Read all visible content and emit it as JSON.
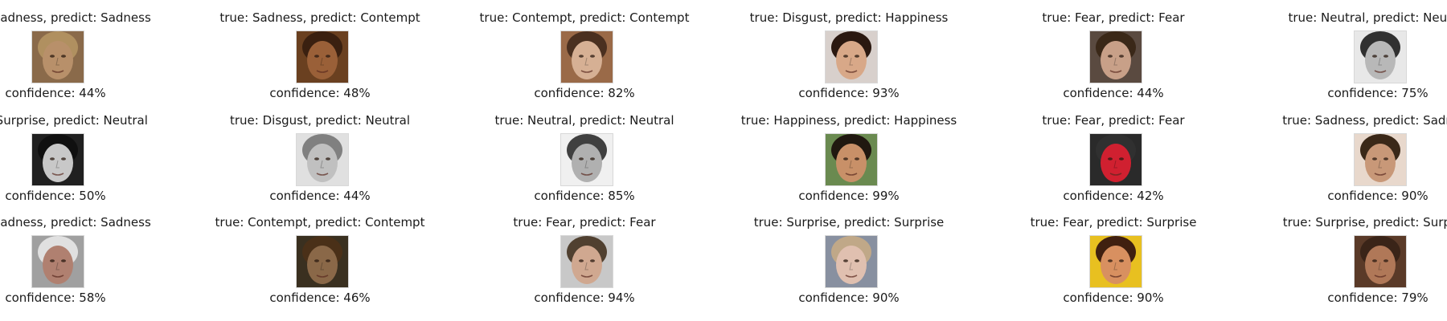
{
  "panels": [
    {
      "row": 0,
      "col": 0,
      "true_label": "Sadness",
      "predicted_label": "Sadness",
      "confidence": 44,
      "title": "true: Sadness, predict: Sadness",
      "caption": "confidence: 44%",
      "thumbnail_icon": "face-thumbnail-icon",
      "tone": {
        "bg": "#8a6a4a",
        "skin": "#b8906a",
        "hair": "#b09060"
      }
    },
    {
      "row": 0,
      "col": 1,
      "true_label": "Sadness",
      "predicted_label": "Contempt",
      "confidence": 48,
      "title": "true: Sadness, predict: Contempt",
      "caption": "confidence: 48%",
      "thumbnail_icon": "face-thumbnail-icon",
      "tone": {
        "bg": "#6a4020",
        "skin": "#9a6038",
        "hair": "#3a2010"
      }
    },
    {
      "row": 0,
      "col": 2,
      "true_label": "Contempt",
      "predicted_label": "Contempt",
      "confidence": 82,
      "title": "true: Contempt, predict: Contempt",
      "caption": "confidence: 82%",
      "thumbnail_icon": "face-thumbnail-icon",
      "tone": {
        "bg": "#9a6a48",
        "skin": "#d6b094",
        "hair": "#4a3020"
      }
    },
    {
      "row": 0,
      "col": 3,
      "true_label": "Disgust",
      "predicted_label": "Happiness",
      "confidence": 93,
      "title": "true: Disgust, predict: Happiness",
      "caption": "confidence: 93%",
      "thumbnail_icon": "face-thumbnail-icon",
      "tone": {
        "bg": "#d8d0cc",
        "skin": "#d8a888",
        "hair": "#2a1810"
      }
    },
    {
      "row": 0,
      "col": 4,
      "true_label": "Fear",
      "predicted_label": "Fear",
      "confidence": 44,
      "title": "true: Fear, predict: Fear",
      "caption": "confidence: 44%",
      "thumbnail_icon": "face-thumbnail-icon",
      "tone": {
        "bg": "#5a4a40",
        "skin": "#c8a088",
        "hair": "#3a2818"
      }
    },
    {
      "row": 0,
      "col": 5,
      "true_label": "Neutral",
      "predicted_label": "Neutral",
      "confidence": 75,
      "title": "true: Neutral, predict: Neutral",
      "caption": "confidence: 75%",
      "thumbnail_icon": "face-thumbnail-icon",
      "tone": {
        "bg": "#e8e8e8",
        "skin": "#b8b8b8",
        "hair": "#303030"
      }
    },
    {
      "row": 1,
      "col": 0,
      "true_label": "Surprise",
      "predicted_label": "Neutral",
      "confidence": 50,
      "title": "true: Surprise, predict: Neutral",
      "caption": "confidence: 50%",
      "thumbnail_icon": "face-thumbnail-icon",
      "tone": {
        "bg": "#202020",
        "skin": "#c8c8c8",
        "hair": "#101010"
      }
    },
    {
      "row": 1,
      "col": 1,
      "true_label": "Disgust",
      "predicted_label": "Neutral",
      "confidence": 44,
      "title": "true: Disgust, predict: Neutral",
      "caption": "confidence: 44%",
      "thumbnail_icon": "face-thumbnail-icon",
      "tone": {
        "bg": "#e0e0e0",
        "skin": "#c0c0c0",
        "hair": "#808080"
      }
    },
    {
      "row": 1,
      "col": 2,
      "true_label": "Neutral",
      "predicted_label": "Neutral",
      "confidence": 85,
      "title": "true: Neutral, predict: Neutral",
      "caption": "confidence: 85%",
      "thumbnail_icon": "face-thumbnail-icon",
      "tone": {
        "bg": "#f0f0f0",
        "skin": "#b0b0b0",
        "hair": "#404040"
      }
    },
    {
      "row": 1,
      "col": 3,
      "true_label": "Happiness",
      "predicted_label": "Happiness",
      "confidence": 99,
      "title": "true: Happiness, predict: Happiness",
      "caption": "confidence: 99%",
      "thumbnail_icon": "face-thumbnail-icon",
      "tone": {
        "bg": "#6a8a50",
        "skin": "#c89068",
        "hair": "#201810"
      }
    },
    {
      "row": 1,
      "col": 4,
      "true_label": "Fear",
      "predicted_label": "Fear",
      "confidence": 42,
      "title": "true: Fear, predict: Fear",
      "caption": "confidence: 42%",
      "thumbnail_icon": "face-thumbnail-icon",
      "tone": {
        "bg": "#2a2a2a",
        "skin": "#d02030",
        "hair": "#303030"
      }
    },
    {
      "row": 1,
      "col": 5,
      "true_label": "Sadness",
      "predicted_label": "Sadness",
      "confidence": 90,
      "title": "true: Sadness, predict: Sadness",
      "caption": "confidence: 90%",
      "thumbnail_icon": "face-thumbnail-icon",
      "tone": {
        "bg": "#e8d8cc",
        "skin": "#c89878",
        "hair": "#3a2818"
      }
    },
    {
      "row": 2,
      "col": 0,
      "true_label": "Sadness",
      "predicted_label": "Sadness",
      "confidence": 58,
      "title": "true: Sadness, predict: Sadness",
      "caption": "confidence: 58%",
      "thumbnail_icon": "face-thumbnail-icon",
      "tone": {
        "bg": "#a0a0a0",
        "skin": "#b08070",
        "hair": "#e0e0e0"
      }
    },
    {
      "row": 2,
      "col": 1,
      "true_label": "Contempt",
      "predicted_label": "Contempt",
      "confidence": 46,
      "title": "true: Contempt, predict: Contempt",
      "caption": "confidence: 46%",
      "thumbnail_icon": "face-thumbnail-icon",
      "tone": {
        "bg": "#3a3020",
        "skin": "#8a6848",
        "hair": "#4a3018"
      }
    },
    {
      "row": 2,
      "col": 2,
      "true_label": "Fear",
      "predicted_label": "Fear",
      "confidence": 94,
      "title": "true: Fear, predict: Fear",
      "caption": "confidence: 94%",
      "thumbnail_icon": "face-thumbnail-icon",
      "tone": {
        "bg": "#c8c8c8",
        "skin": "#d0a890",
        "hair": "#504030"
      }
    },
    {
      "row": 2,
      "col": 3,
      "true_label": "Surprise",
      "predicted_label": "Surprise",
      "confidence": 90,
      "title": "true: Surprise, predict: Surprise",
      "caption": "confidence: 90%",
      "thumbnail_icon": "face-thumbnail-icon",
      "tone": {
        "bg": "#8890a0",
        "skin": "#e0c0b0",
        "hair": "#c0a888"
      }
    },
    {
      "row": 2,
      "col": 4,
      "true_label": "Fear",
      "predicted_label": "Surprise",
      "confidence": 90,
      "title": "true: Fear, predict: Surprise",
      "caption": "confidence: 90%",
      "thumbnail_icon": "face-thumbnail-icon",
      "tone": {
        "bg": "#e8c020",
        "skin": "#d89060",
        "hair": "#402010"
      }
    },
    {
      "row": 2,
      "col": 5,
      "true_label": "Surprise",
      "predicted_label": "Surprise",
      "confidence": 79,
      "title": "true: Surprise, predict: Surprise",
      "caption": "confidence: 79%",
      "thumbnail_icon": "face-thumbnail-icon",
      "tone": {
        "bg": "#5a3a28",
        "skin": "#b07858",
        "hair": "#3a2418"
      }
    }
  ]
}
